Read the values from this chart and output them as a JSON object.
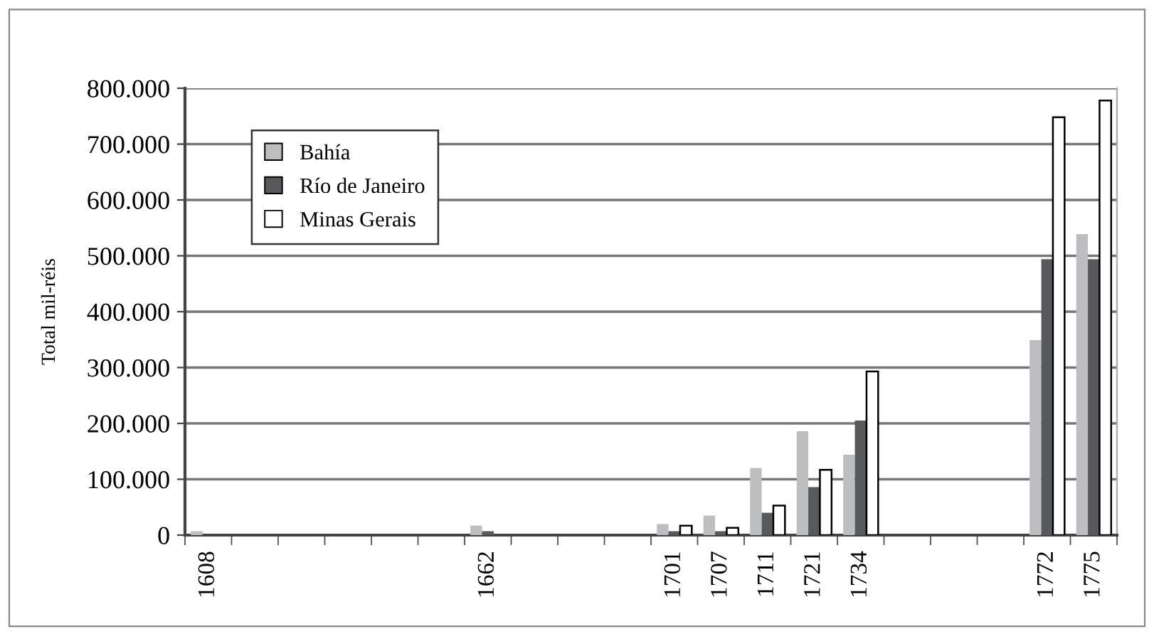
{
  "chart_data": {
    "type": "bar",
    "ylabel": "Total mil-réis",
    "categories": [
      "1608",
      null,
      null,
      null,
      null,
      null,
      "1662",
      null,
      null,
      null,
      "1701",
      "1707",
      "1711",
      "1721",
      "1734",
      null,
      null,
      null,
      "1772",
      "1775"
    ],
    "series": [
      {
        "name": "Bahía",
        "color": "#bdbec0",
        "values": [
          7000,
          null,
          null,
          null,
          null,
          null,
          17000,
          null,
          null,
          null,
          20000,
          35000,
          120000,
          186000,
          144000,
          null,
          null,
          null,
          349000,
          539000
        ]
      },
      {
        "name": "Río de Janeiro",
        "color": "#58595b",
        "values": [
          null,
          null,
          null,
          null,
          null,
          null,
          7000,
          null,
          null,
          null,
          7000,
          7000,
          40000,
          86000,
          205000,
          null,
          null,
          null,
          494000,
          494000
        ]
      },
      {
        "name": "Minas Gerais",
        "color": "#ffffff",
        "values": [
          null,
          null,
          null,
          null,
          null,
          null,
          null,
          null,
          null,
          null,
          17000,
          13000,
          53000,
          117000,
          293000,
          null,
          null,
          null,
          748000,
          778000
        ]
      }
    ],
    "ylim": [
      0,
      800000
    ],
    "yticks": [
      {
        "value": 0,
        "label": "0"
      },
      {
        "value": 100000,
        "label": "100.000"
      },
      {
        "value": 200000,
        "label": "200.000"
      },
      {
        "value": 300000,
        "label": "300.000"
      },
      {
        "value": 400000,
        "label": "400.000"
      },
      {
        "value": 500000,
        "label": "500.000"
      },
      {
        "value": 600000,
        "label": "600.000"
      },
      {
        "value": 700000,
        "label": "700.000"
      },
      {
        "value": 800000,
        "label": "800.000"
      }
    ],
    "grid": "y",
    "legend": "top left"
  }
}
